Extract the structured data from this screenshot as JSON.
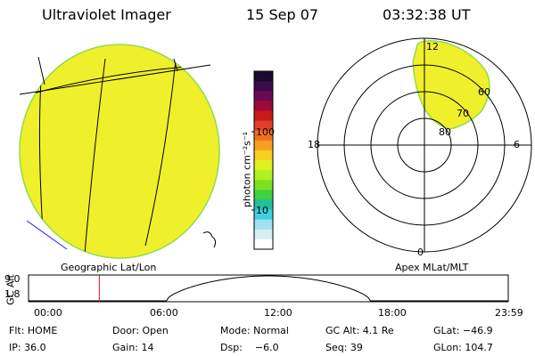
{
  "header": {
    "instrument": "Ultraviolet Imager",
    "date": "15 Sep 07",
    "time": "03:32:38 UT"
  },
  "colors": {
    "fill": "#f0ef2c",
    "fill_edge": "#8fdc4a",
    "line": "#000000",
    "coast": "#1a1aff",
    "marker": "#d11a1a"
  },
  "colorbar": {
    "label": "photon cm⁻²s⁻¹",
    "ticks": [
      {
        "label": "100",
        "value": 100
      },
      {
        "label": "10",
        "value": 10
      }
    ],
    "colors": [
      "#1a0a2e",
      "#3b0a4a",
      "#6a0a55",
      "#9a0a3a",
      "#c81a1a",
      "#e0402a",
      "#f07020",
      "#f5a020",
      "#f5d020",
      "#e0f020",
      "#b0f020",
      "#7de020",
      "#40d040",
      "#20c0a0",
      "#40d0e0",
      "#a0e0f0",
      "#d8eef0",
      "#ffffff"
    ]
  },
  "left_panel": {
    "caption": "Geographic Lat/Lon"
  },
  "right_panel": {
    "caption": "Apex MLat/MLT",
    "mlt_labels": {
      "top": "12",
      "left": "18",
      "right": "6",
      "bottom": "0"
    },
    "lat_labels": [
      "60",
      "70",
      "80"
    ]
  },
  "altitude_plot": {
    "ylabel": "GC Alt",
    "ytick_top": "9.0",
    "ytick_bottom": "1.8",
    "xticks": [
      "00:00",
      "06:00",
      "12:00",
      "18:00",
      "23:59"
    ],
    "marker_time_hours": 3.54
  },
  "footer": {
    "flt": "Flt: HOME",
    "door": "Door: Open",
    "mode": "Mode: Normal",
    "gc_alt": "GC Alt: 4.1 Re",
    "glat": "GLat: −46.9",
    "ip": "IP: 36.0",
    "gain": "Gain: 14",
    "dsp": "Dsp:    −6.0",
    "seq": "Seq: 39",
    "glon": "GLon: 104.7"
  }
}
